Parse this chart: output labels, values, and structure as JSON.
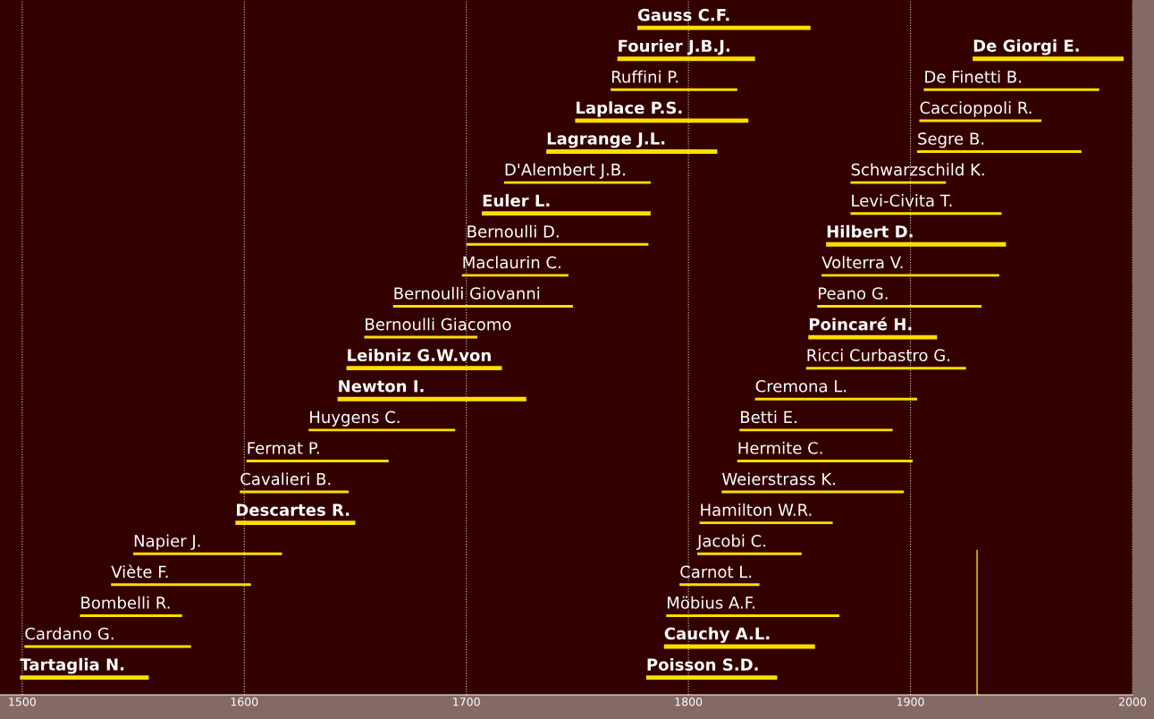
{
  "chart_data": {
    "type": "bar",
    "orientation": "horizontal",
    "categories": [
      null,
      null,
      null,
      null,
      null,
      null,
      null,
      null,
      null,
      null,
      null,
      null,
      null,
      null,
      null,
      null,
      null,
      null,
      null,
      null,
      null,
      null
    ],
    "xlim": [
      1490,
      2000
    ],
    "xticks": [
      1500,
      1600,
      1700,
      1800,
      1900,
      2000
    ],
    "grid": "x",
    "tick_labels": "x",
    "series": [
      {
        "color": "#ffdd00",
        "base": [
          null,
          null,
          1765,
          null,
          null,
          1717,
          null,
          1700,
          1698,
          1667,
          1654,
          null,
          null,
          1629,
          1601,
          1598,
          null,
          1550,
          1540,
          1526,
          1501,
          null
        ],
        "values": [
          null,
          null,
          57,
          null,
          null,
          66,
          null,
          82,
          48,
          81,
          51,
          null,
          null,
          66,
          64,
          49,
          null,
          67,
          63,
          46,
          75,
          null
        ],
        "value_labels": [
          null,
          null,
          "Ruffini P.",
          null,
          null,
          "D'Alembert J.B.",
          null,
          "Bernoulli D.",
          "Maclaurin C.",
          "Bernoulli Giovanni",
          "Bernoulli Giacomo",
          null,
          null,
          "Huygens C.",
          "Fermat P.",
          "Cavalieri B.",
          null,
          "Napier J.",
          "Viète F.",
          "Bombelli R.",
          "Cardano G.",
          null
        ]
      },
      {
        "color": "#ffdd00",
        "base": [
          1777,
          1768,
          null,
          1749,
          1736,
          null,
          1707,
          null,
          null,
          null,
          null,
          1646,
          1642,
          null,
          null,
          null,
          1596,
          null,
          null,
          null,
          null,
          1499
        ],
        "values": [
          78,
          62,
          null,
          78,
          77,
          null,
          76,
          null,
          null,
          null,
          null,
          70,
          85,
          null,
          null,
          null,
          54,
          null,
          null,
          null,
          null,
          58
        ],
        "value_labels": [
          "Gauss C.F.",
          "Fourier J.B.J.",
          null,
          "Laplace P.S.",
          "Lagrange J.L.",
          null,
          "Euler L.",
          null,
          null,
          null,
          null,
          "Leibniz G.W.von",
          "Newton I.",
          null,
          null,
          null,
          "Descartes R.",
          null,
          null,
          null,
          null,
          "Tartaglia N."
        ]
      },
      {
        "color": "#ffdd00",
        "base": [
          null,
          null,
          1906,
          1904,
          1903,
          1873,
          1873,
          null,
          1860,
          1858,
          null,
          1853,
          1830,
          1823,
          1822,
          1815,
          1805,
          1804,
          1796,
          1790,
          null,
          null
        ],
        "values": [
          null,
          null,
          79,
          55,
          74,
          43,
          68,
          null,
          80,
          74,
          null,
          72,
          73,
          69,
          79,
          82,
          60,
          47,
          36,
          78,
          null,
          null
        ],
        "value_labels": [
          null,
          null,
          "De Finetti B.",
          "Caccioppoli R.",
          "Segre B.",
          "Schwarzschild K.",
          "Levi-Civita T.",
          null,
          "Volterra V.",
          "Peano G.",
          null,
          "Ricci Curbastro G.",
          "Cremona L.",
          "Betti E.",
          "Hermite C.",
          "Weierstrass K.",
          "Hamilton W.R.",
          "Jacobi C.",
          "Carnot L.",
          "Möbius A.F.",
          null,
          null
        ]
      },
      {
        "color": "#ffdd00",
        "base": [
          null,
          1928,
          null,
          null,
          null,
          null,
          null,
          1862,
          null,
          null,
          1854,
          null,
          null,
          null,
          null,
          null,
          null,
          null,
          null,
          null,
          1789,
          1781
        ],
        "values": [
          null,
          68,
          null,
          null,
          null,
          null,
          null,
          81,
          null,
          null,
          58,
          null,
          null,
          null,
          null,
          null,
          null,
          null,
          null,
          null,
          68,
          59
        ],
        "value_labels": [
          null,
          "De Giorgi E.",
          null,
          null,
          null,
          null,
          null,
          "Hilbert D.",
          null,
          null,
          "Poincaré H.",
          null,
          null,
          null,
          null,
          null,
          null,
          null,
          null,
          null,
          "Cauchy A.L.",
          "Poisson S.D."
        ]
      }
    ],
    "ref_lines": [
      {
        "axis": "x",
        "value": 1930,
        "color": "#ffdd00"
      }
    ]
  }
}
